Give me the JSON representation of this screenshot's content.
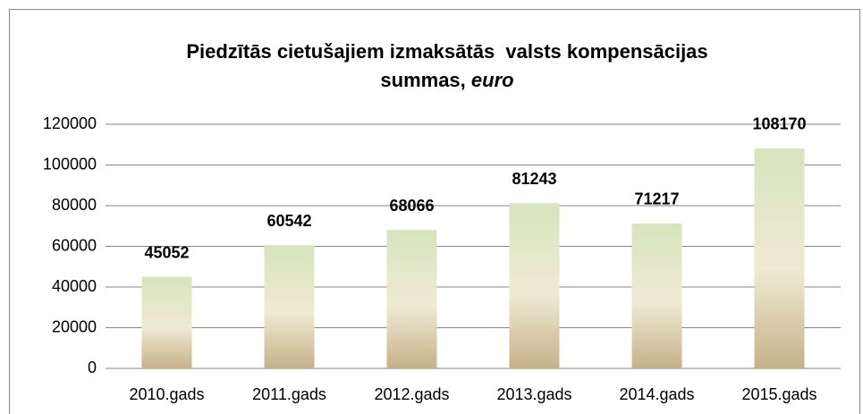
{
  "chart_data": {
    "type": "bar",
    "title": "Piedzītās cietušajiem izmaksātās  valsts kompensācijas summas,",
    "title_unit": "euro",
    "categories": [
      "2010.gads",
      "2011.gads",
      "2012.gads",
      "2013.gads",
      "2014.gads",
      "2015.gads"
    ],
    "values": [
      45052,
      60542,
      68066,
      81243,
      71217,
      108170
    ],
    "color": "#d7e4bd",
    "ylim": [
      0,
      120000
    ],
    "yticks": [
      0,
      20000,
      40000,
      60000,
      80000,
      100000,
      120000
    ],
    "grid": true
  }
}
